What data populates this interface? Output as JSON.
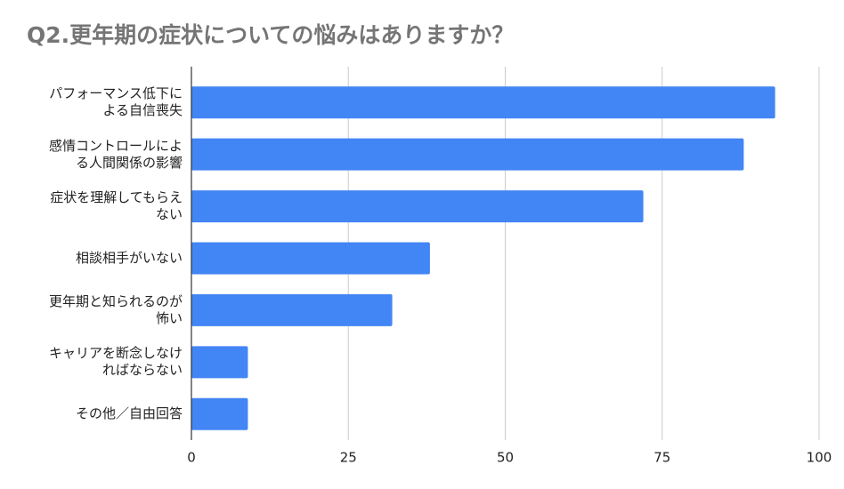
{
  "chart_data": {
    "type": "bar",
    "orientation": "horizontal",
    "title": "Q2.更年期の症状についての悩みはありますか？",
    "categories": [
      "パフォーマンス低下による自信喪失",
      "感情コントロールによる人間関係の影響",
      "症状を理解してもらえない",
      "相談相手がいない",
      "更年期と知られるのが怖い",
      "キャリアを断念しなければならない",
      "その他／自由回答"
    ],
    "values": [
      93,
      88,
      72,
      38,
      32,
      9,
      9
    ],
    "color": "#4285f4",
    "xlim": [
      0,
      100
    ],
    "xticks": [
      0,
      25,
      50,
      75,
      100
    ],
    "grid": true
  }
}
